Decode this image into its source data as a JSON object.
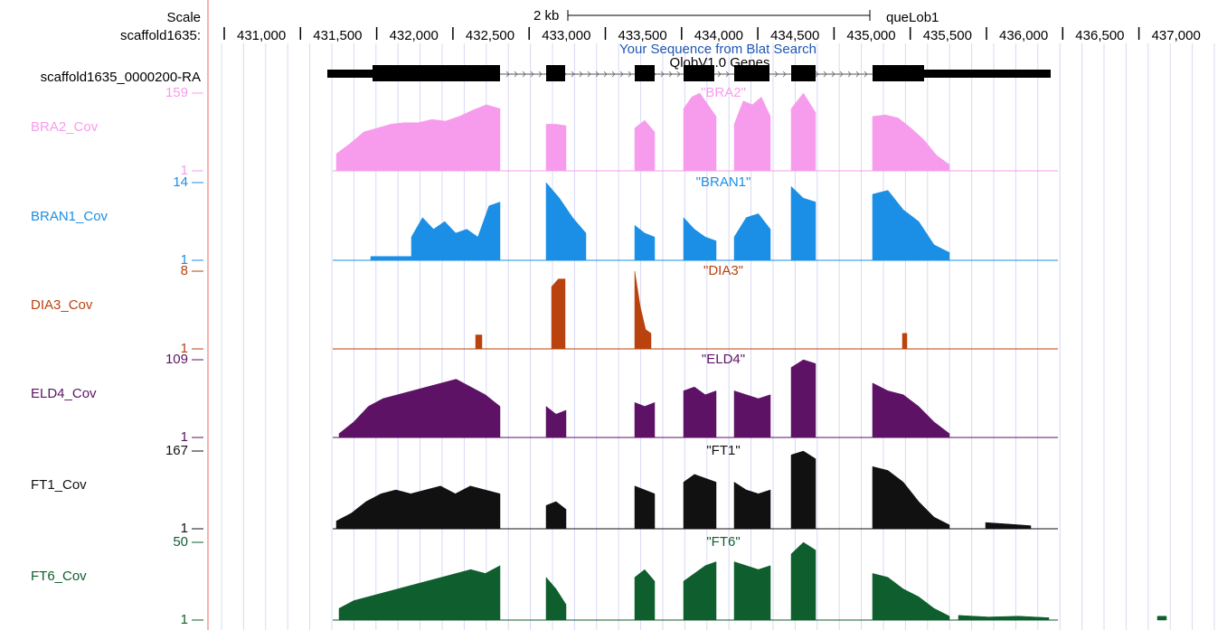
{
  "header": {
    "scale_label": "Scale",
    "chrom_label": "scaffold1635:",
    "scale_bar_label": "2 kb",
    "assembly_label": "queLob1",
    "blat_label": "Your Sequence from Blat Search",
    "gene_track_label": "QlobV1.0 Genes"
  },
  "ruler": {
    "ticks": [
      "431,000",
      "431,500",
      "432,000",
      "432,500",
      "433,000",
      "433,500",
      "434,000",
      "434,500",
      "435,000",
      "435,500",
      "436,000",
      "436,500",
      "437,000"
    ]
  },
  "gene": {
    "name": "scaffold1635_0000200-RA"
  },
  "tracks": [
    {
      "label": "BRA2_Cov",
      "title": "\"BRA2\"",
      "max": "159",
      "min": "1",
      "color": "#f79cec",
      "peak": 0.7
    },
    {
      "label": "BRAN1_Cov",
      "title": "\"BRAN1\"",
      "max": "14",
      "min": "1",
      "color": "#1b8fe6",
      "peak": 0.92
    },
    {
      "label": "DIA3_Cov",
      "title": "\"DIA3\"",
      "max": "8",
      "min": "1",
      "color": "#b9420e",
      "peak": 0.9
    },
    {
      "label": "ELD4_Cov",
      "title": "\"ELD4\"",
      "max": "109",
      "min": "1",
      "color": "#5d1265",
      "peak": 0.8
    },
    {
      "label": "FT1_Cov",
      "title": "\"FT1\"",
      "max": "167",
      "min": "1",
      "color": "#111111",
      "peak": 0.88
    },
    {
      "label": "FT6_Cov",
      "title": "\"FT6\"",
      "max": "50",
      "min": "1",
      "color": "#0f5e2e",
      "peak": 0.88
    }
  ]
}
